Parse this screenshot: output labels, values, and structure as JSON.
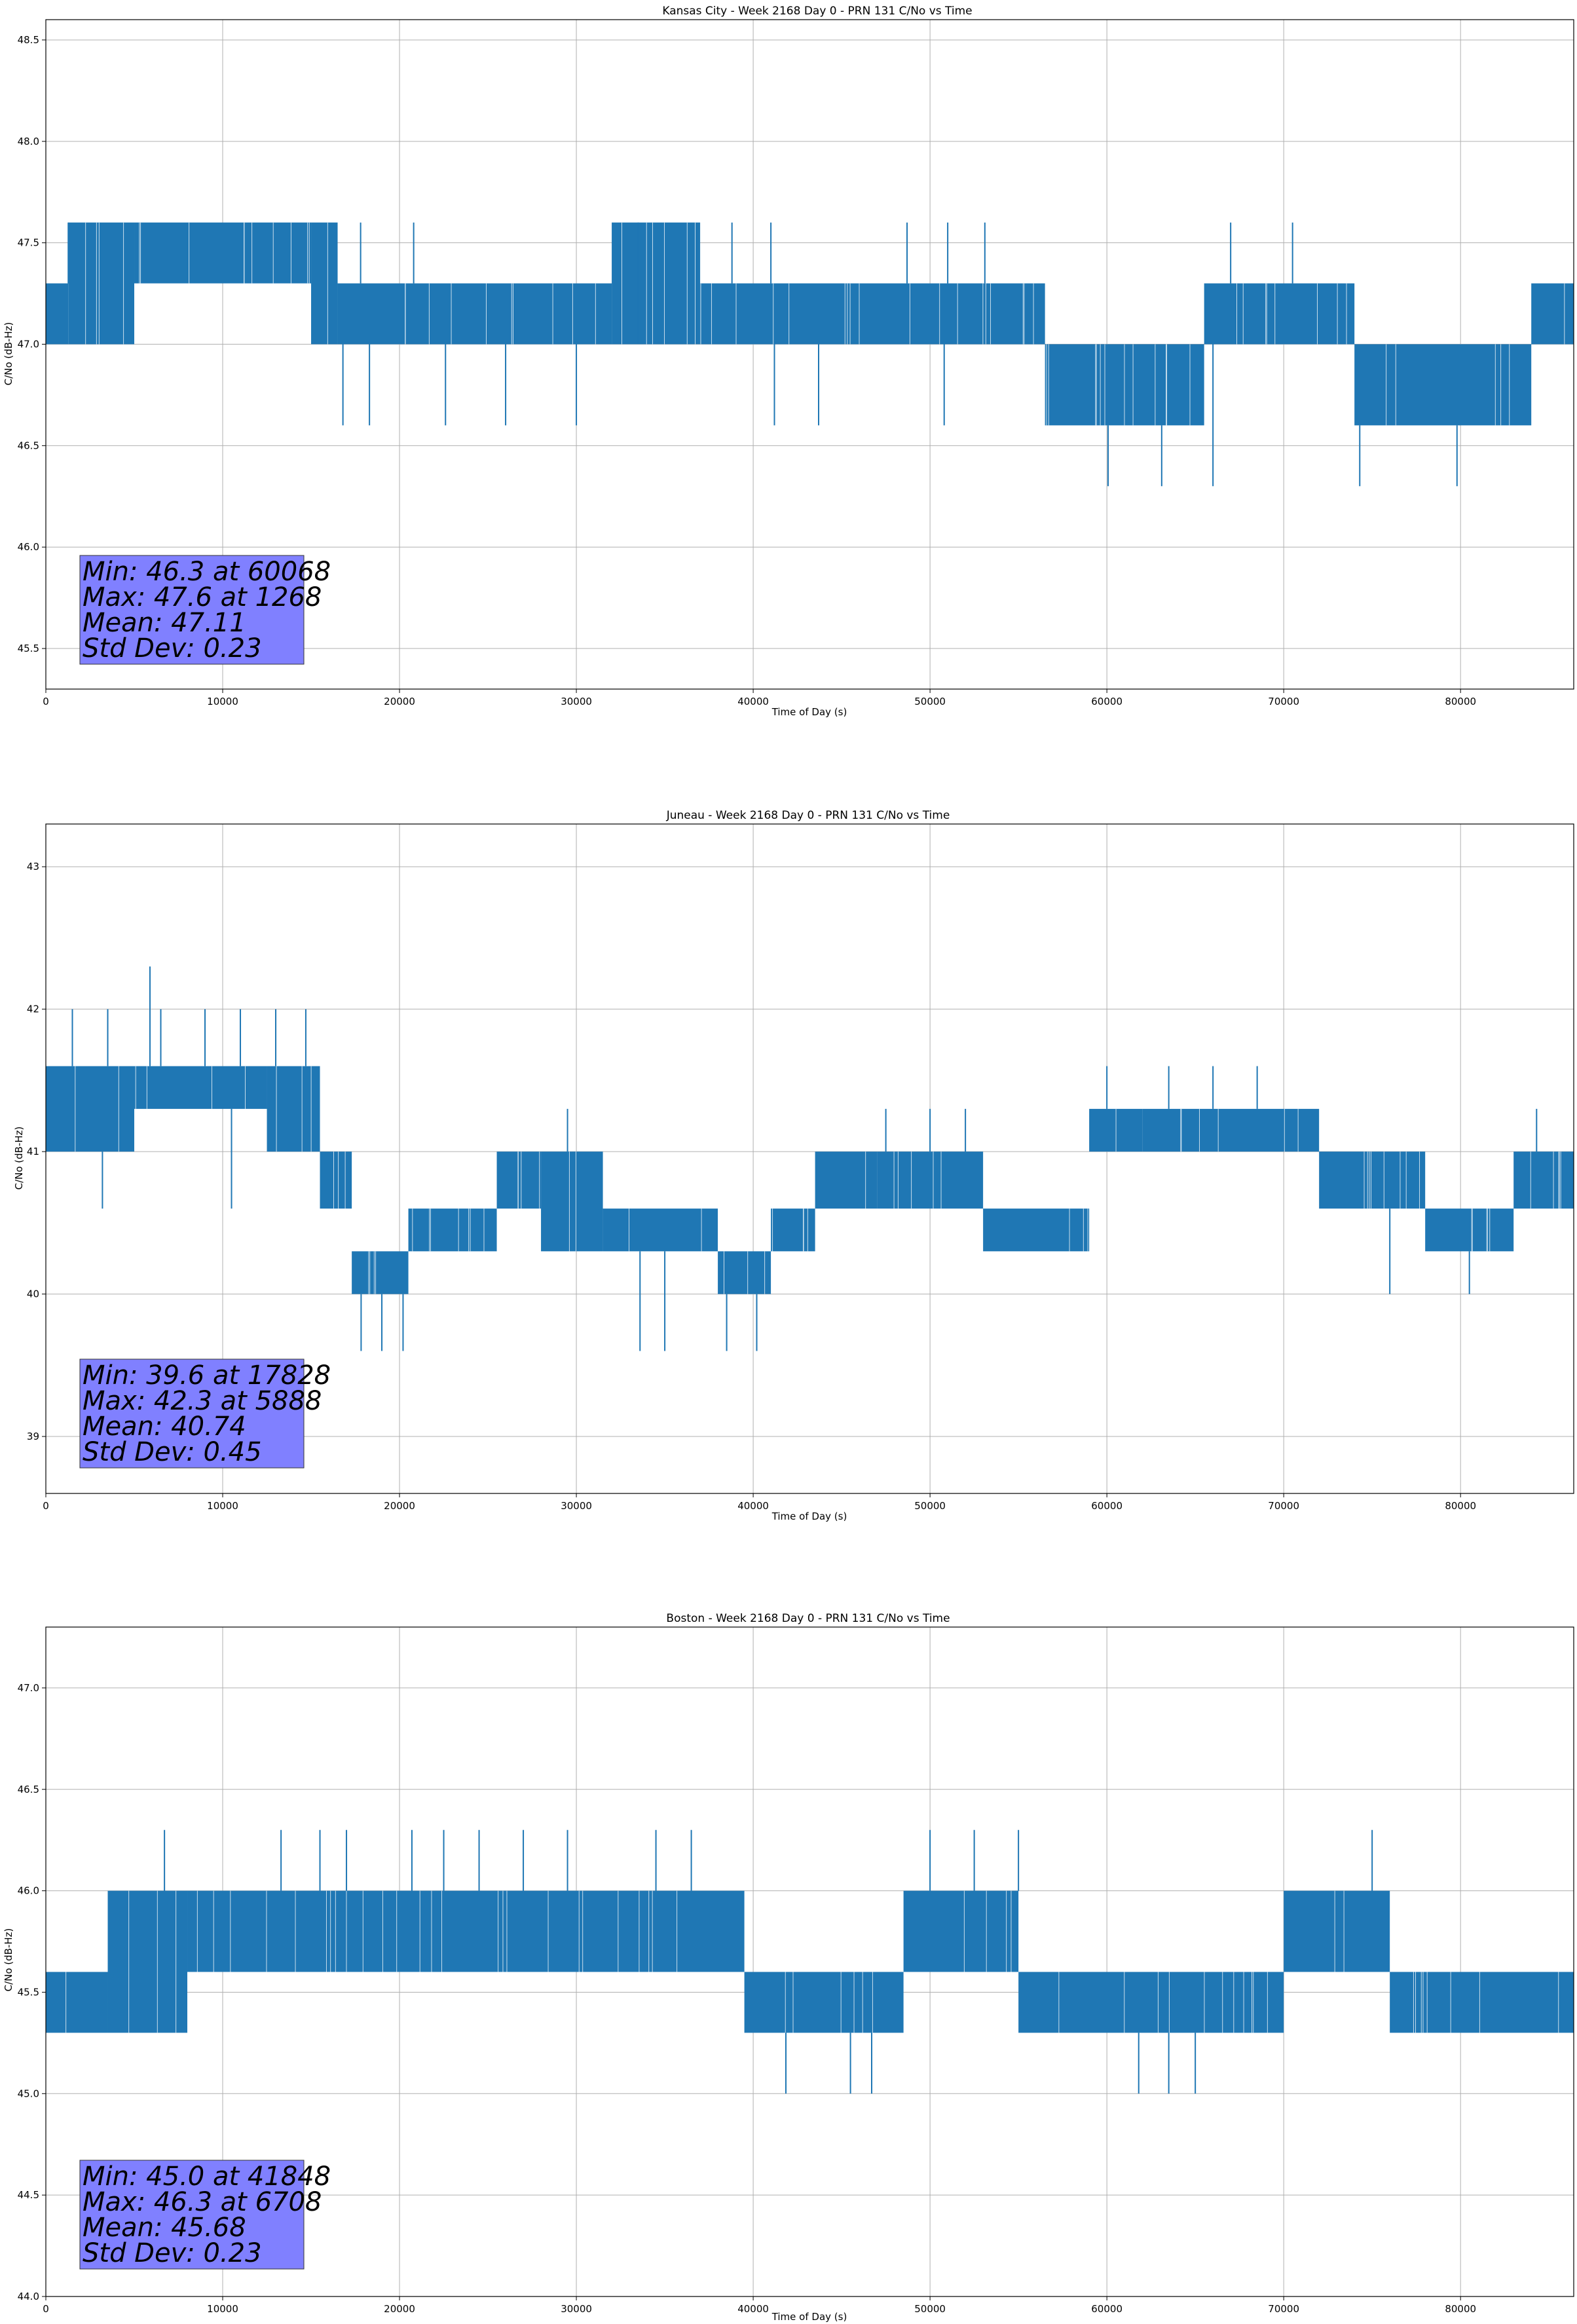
{
  "chart_data": [
    {
      "type": "line",
      "title": "Kansas City - Week 2168 Day 0 - PRN 131 C/No vs Time",
      "xlabel": "Time of Day (s)",
      "ylabel": "C/No (dB-Hz)",
      "xlim": [
        0,
        86400
      ],
      "ylim": [
        45.3,
        48.6
      ],
      "xticks": [
        0,
        10000,
        20000,
        30000,
        40000,
        50000,
        60000,
        70000,
        80000
      ],
      "yticks": [
        45.5,
        46.0,
        46.5,
        47.0,
        47.5,
        48.0,
        48.5
      ],
      "ytick_labels": [
        "45.5",
        "46.0",
        "46.5",
        "47.0",
        "47.5",
        "48.0",
        "48.5"
      ],
      "grid": true,
      "color": "#1f77b4",
      "segments": [
        {
          "x": [
            0,
            1268
          ],
          "low": 47.0,
          "high": 47.3
        },
        {
          "x": [
            1268,
            5000
          ],
          "low": 47.0,
          "high": 47.6
        },
        {
          "x": [
            5000,
            15000
          ],
          "low": 47.3,
          "high": 47.6
        },
        {
          "x": [
            15000,
            16500
          ],
          "low": 47.0,
          "high": 47.6
        },
        {
          "x": [
            16500,
            32000
          ],
          "low": 47.0,
          "high": 47.3
        },
        {
          "x": [
            32000,
            37000
          ],
          "low": 47.0,
          "high": 47.6
        },
        {
          "x": [
            37000,
            56500
          ],
          "low": 47.0,
          "high": 47.3
        },
        {
          "x": [
            56500,
            65500
          ],
          "low": 46.6,
          "high": 47.0
        },
        {
          "x": [
            65500,
            74000
          ],
          "low": 47.0,
          "high": 47.3
        },
        {
          "x": [
            74000,
            84000
          ],
          "low": 46.6,
          "high": 47.0
        },
        {
          "x": [
            84000,
            86400
          ],
          "low": 47.0,
          "high": 47.3
        }
      ],
      "spikes": [
        {
          "x": 1268,
          "y": 47.6
        },
        {
          "x": 17800,
          "y": 47.6
        },
        {
          "x": 20800,
          "y": 47.6
        },
        {
          "x": 33500,
          "y": 47.6
        },
        {
          "x": 38800,
          "y": 47.6
        },
        {
          "x": 41000,
          "y": 47.6
        },
        {
          "x": 48700,
          "y": 47.6
        },
        {
          "x": 51000,
          "y": 47.6
        },
        {
          "x": 53100,
          "y": 47.6
        },
        {
          "x": 67000,
          "y": 47.6
        },
        {
          "x": 70500,
          "y": 47.6
        },
        {
          "x": 16800,
          "y": 46.6
        },
        {
          "x": 18300,
          "y": 46.6
        },
        {
          "x": 22600,
          "y": 46.6
        },
        {
          "x": 26000,
          "y": 46.6
        },
        {
          "x": 30000,
          "y": 46.6
        },
        {
          "x": 41200,
          "y": 46.6
        },
        {
          "x": 43700,
          "y": 46.6
        },
        {
          "x": 50800,
          "y": 46.6
        },
        {
          "x": 60068,
          "y": 46.3
        },
        {
          "x": 63100,
          "y": 46.3
        },
        {
          "x": 66000,
          "y": 46.3
        },
        {
          "x": 74300,
          "y": 46.3
        },
        {
          "x": 79800,
          "y": 46.3
        }
      ],
      "stats": {
        "min_line": "Min: 46.3 at 60068",
        "max_line": "Max: 47.6 at 1268",
        "mean_line": "Mean: 47.11",
        "std_line": "Std Dev: 0.23"
      }
    },
    {
      "type": "line",
      "title": "Juneau - Week 2168 Day 0 - PRN 131 C/No vs Time",
      "xlabel": "Time of Day (s)",
      "ylabel": "C/No (dB-Hz)",
      "xlim": [
        0,
        86400
      ],
      "ylim": [
        38.6,
        43.3
      ],
      "xticks": [
        0,
        10000,
        20000,
        30000,
        40000,
        50000,
        60000,
        70000,
        80000
      ],
      "yticks": [
        39,
        40,
        41,
        42,
        43
      ],
      "ytick_labels": [
        "39",
        "40",
        "41",
        "42",
        "43"
      ],
      "grid": true,
      "color": "#1f77b4",
      "segments": [
        {
          "x": [
            0,
            5000
          ],
          "low": 41.0,
          "high": 41.6
        },
        {
          "x": [
            5000,
            12500
          ],
          "low": 41.3,
          "high": 41.6
        },
        {
          "x": [
            12500,
            15500
          ],
          "low": 41.0,
          "high": 41.6
        },
        {
          "x": [
            15500,
            17300
          ],
          "low": 40.6,
          "high": 41.0
        },
        {
          "x": [
            17300,
            20500
          ],
          "low": 40.0,
          "high": 40.3
        },
        {
          "x": [
            20500,
            25500
          ],
          "low": 40.3,
          "high": 40.6
        },
        {
          "x": [
            25500,
            28000
          ],
          "low": 40.6,
          "high": 41.0
        },
        {
          "x": [
            28000,
            31500
          ],
          "low": 40.3,
          "high": 41.0
        },
        {
          "x": [
            31500,
            38000
          ],
          "low": 40.3,
          "high": 40.6
        },
        {
          "x": [
            38000,
            41000
          ],
          "low": 40.0,
          "high": 40.3
        },
        {
          "x": [
            41000,
            43500
          ],
          "low": 40.3,
          "high": 40.6
        },
        {
          "x": [
            43500,
            47000
          ],
          "low": 40.6,
          "high": 41.0
        },
        {
          "x": [
            47000,
            53000
          ],
          "low": 40.6,
          "high": 41.0
        },
        {
          "x": [
            53000,
            59000
          ],
          "low": 40.3,
          "high": 40.6
        },
        {
          "x": [
            59000,
            62000
          ],
          "low": 41.0,
          "high": 41.3
        },
        {
          "x": [
            62000,
            72000
          ],
          "low": 41.0,
          "high": 41.3
        },
        {
          "x": [
            72000,
            78000
          ],
          "low": 40.6,
          "high": 41.0
        },
        {
          "x": [
            78000,
            83000
          ],
          "low": 40.3,
          "high": 40.6
        },
        {
          "x": [
            83000,
            86400
          ],
          "low": 40.6,
          "high": 41.0
        }
      ],
      "spikes": [
        {
          "x": 5888,
          "y": 42.3
        },
        {
          "x": 1500,
          "y": 42.0
        },
        {
          "x": 3500,
          "y": 42.0
        },
        {
          "x": 6500,
          "y": 42.0
        },
        {
          "x": 9000,
          "y": 42.0
        },
        {
          "x": 11000,
          "y": 42.0
        },
        {
          "x": 13000,
          "y": 42.0
        },
        {
          "x": 14700,
          "y": 42.0
        },
        {
          "x": 3200,
          "y": 40.6
        },
        {
          "x": 10500,
          "y": 40.6
        },
        {
          "x": 17828,
          "y": 39.6
        },
        {
          "x": 19000,
          "y": 39.6
        },
        {
          "x": 20200,
          "y": 39.6
        },
        {
          "x": 33600,
          "y": 39.6
        },
        {
          "x": 35000,
          "y": 39.6
        },
        {
          "x": 38500,
          "y": 39.6
        },
        {
          "x": 40200,
          "y": 39.6
        },
        {
          "x": 29500,
          "y": 41.3
        },
        {
          "x": 47500,
          "y": 41.3
        },
        {
          "x": 50000,
          "y": 41.3
        },
        {
          "x": 52000,
          "y": 41.3
        },
        {
          "x": 60000,
          "y": 41.6
        },
        {
          "x": 63500,
          "y": 41.6
        },
        {
          "x": 66000,
          "y": 41.6
        },
        {
          "x": 68500,
          "y": 41.6
        },
        {
          "x": 84300,
          "y": 41.3
        },
        {
          "x": 76000,
          "y": 40.0
        },
        {
          "x": 80500,
          "y": 40.0
        }
      ],
      "stats": {
        "min_line": "Min: 39.6 at 17828",
        "max_line": "Max: 42.3 at 5888",
        "mean_line": "Mean: 40.74",
        "std_line": "Std Dev: 0.45"
      }
    },
    {
      "type": "line",
      "title": "Boston - Week 2168 Day 0 - PRN 131 C/No vs Time",
      "xlabel": "Time of Day (s)",
      "ylabel": "C/No (dB-Hz)",
      "xlim": [
        0,
        86400
      ],
      "ylim": [
        44.0,
        47.3
      ],
      "xticks": [
        0,
        10000,
        20000,
        30000,
        40000,
        50000,
        60000,
        70000,
        80000
      ],
      "yticks": [
        44.0,
        44.5,
        45.0,
        45.5,
        46.0,
        46.5,
        47.0
      ],
      "ytick_labels": [
        "44.0",
        "44.5",
        "45.0",
        "45.5",
        "46.0",
        "46.5",
        "47.0"
      ],
      "grid": true,
      "color": "#1f77b4",
      "segments": [
        {
          "x": [
            0,
            3500
          ],
          "low": 45.3,
          "high": 45.6
        },
        {
          "x": [
            3500,
            8000
          ],
          "low": 45.3,
          "high": 46.0
        },
        {
          "x": [
            8000,
            39500
          ],
          "low": 45.6,
          "high": 46.0
        },
        {
          "x": [
            39500,
            48500
          ],
          "low": 45.3,
          "high": 45.6
        },
        {
          "x": [
            48500,
            55000
          ],
          "low": 45.6,
          "high": 46.0
        },
        {
          "x": [
            55000,
            70000
          ],
          "low": 45.3,
          "high": 45.6
        },
        {
          "x": [
            70000,
            76000
          ],
          "low": 45.6,
          "high": 46.0
        },
        {
          "x": [
            76000,
            86400
          ],
          "low": 45.3,
          "high": 45.6
        }
      ],
      "spikes": [
        {
          "x": 6708,
          "y": 46.3
        },
        {
          "x": 13300,
          "y": 46.3
        },
        {
          "x": 15500,
          "y": 46.3
        },
        {
          "x": 17000,
          "y": 46.3
        },
        {
          "x": 20700,
          "y": 46.3
        },
        {
          "x": 22500,
          "y": 46.3
        },
        {
          "x": 24500,
          "y": 46.3
        },
        {
          "x": 27000,
          "y": 46.3
        },
        {
          "x": 29500,
          "y": 46.3
        },
        {
          "x": 34500,
          "y": 46.3
        },
        {
          "x": 36500,
          "y": 46.3
        },
        {
          "x": 50000,
          "y": 46.3
        },
        {
          "x": 52500,
          "y": 46.3
        },
        {
          "x": 55000,
          "y": 46.3
        },
        {
          "x": 75000,
          "y": 46.3
        },
        {
          "x": 41848,
          "y": 45.0
        },
        {
          "x": 45500,
          "y": 45.0
        },
        {
          "x": 46700,
          "y": 45.0
        },
        {
          "x": 61800,
          "y": 45.0
        },
        {
          "x": 63500,
          "y": 45.0
        },
        {
          "x": 65000,
          "y": 45.0
        }
      ],
      "stats": {
        "min_line": "Min: 45.0 at 41848",
        "max_line": "Max: 46.3 at 6708",
        "mean_line": "Mean: 45.68",
        "std_line": "Std Dev: 0.23"
      }
    }
  ]
}
